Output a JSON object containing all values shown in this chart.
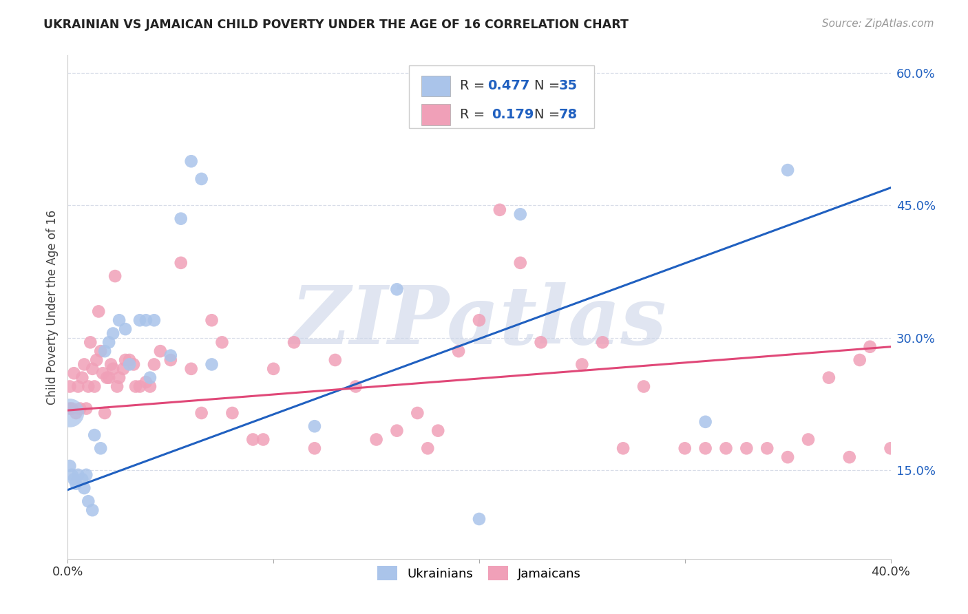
{
  "title": "UKRAINIAN VS JAMAICAN CHILD POVERTY UNDER THE AGE OF 16 CORRELATION CHART",
  "source": "Source: ZipAtlas.com",
  "ylabel": "Child Poverty Under the Age of 16",
  "xlim": [
    0.0,
    0.4
  ],
  "ylim": [
    0.05,
    0.62
  ],
  "yticks": [
    0.15,
    0.3,
    0.45,
    0.6
  ],
  "ytick_labels": [
    "15.0%",
    "30.0%",
    "45.0%",
    "60.0%"
  ],
  "xticks": [
    0.0,
    0.1,
    0.2,
    0.3,
    0.4
  ],
  "background_color": "#ffffff",
  "grid_color": "#d8dde8",
  "watermark": "ZIPatlas",
  "watermark_color": "#ccd5e8",
  "ukrainian_color": "#aac4ea",
  "ukrainian_line_color": "#2060c0",
  "jamaican_color": "#f0a0b8",
  "jamaican_line_color": "#e04878",
  "ukrainian_R": 0.477,
  "ukrainian_N": 35,
  "jamaican_R": 0.179,
  "jamaican_N": 78,
  "ukr_line_x0": 0.0,
  "ukr_line_y0": 0.128,
  "ukr_line_x1": 0.4,
  "ukr_line_y1": 0.47,
  "jam_line_x0": 0.0,
  "jam_line_y0": 0.218,
  "jam_line_x1": 0.4,
  "jam_line_y1": 0.29,
  "ukrainian_x": [
    0.001,
    0.002,
    0.003,
    0.004,
    0.005,
    0.007,
    0.008,
    0.009,
    0.01,
    0.012,
    0.013,
    0.016,
    0.018,
    0.02,
    0.022,
    0.025,
    0.028,
    0.03,
    0.035,
    0.038,
    0.04,
    0.042,
    0.05,
    0.055,
    0.06,
    0.065,
    0.07,
    0.12,
    0.16,
    0.2,
    0.22,
    0.31,
    0.35
  ],
  "ukrainian_y": [
    0.155,
    0.145,
    0.14,
    0.135,
    0.145,
    0.14,
    0.13,
    0.145,
    0.115,
    0.105,
    0.19,
    0.175,
    0.285,
    0.295,
    0.305,
    0.32,
    0.31,
    0.27,
    0.32,
    0.32,
    0.255,
    0.32,
    0.28,
    0.435,
    0.5,
    0.48,
    0.27,
    0.2,
    0.355,
    0.095,
    0.44,
    0.205,
    0.49
  ],
  "ukrainian_big_x": [
    0.001
  ],
  "ukrainian_big_y": [
    0.215
  ],
  "jamaican_x": [
    0.001,
    0.001,
    0.002,
    0.003,
    0.004,
    0.005,
    0.006,
    0.007,
    0.008,
    0.009,
    0.01,
    0.011,
    0.012,
    0.013,
    0.014,
    0.015,
    0.016,
    0.017,
    0.018,
    0.019,
    0.02,
    0.021,
    0.022,
    0.023,
    0.024,
    0.025,
    0.027,
    0.028,
    0.03,
    0.032,
    0.033,
    0.035,
    0.038,
    0.04,
    0.042,
    0.045,
    0.05,
    0.055,
    0.06,
    0.065,
    0.07,
    0.075,
    0.08,
    0.09,
    0.095,
    0.1,
    0.11,
    0.12,
    0.13,
    0.14,
    0.15,
    0.16,
    0.17,
    0.175,
    0.18,
    0.19,
    0.2,
    0.21,
    0.22,
    0.23,
    0.25,
    0.26,
    0.27,
    0.28,
    0.3,
    0.31,
    0.32,
    0.33,
    0.34,
    0.35,
    0.36,
    0.37,
    0.38,
    0.385,
    0.39,
    0.4
  ],
  "jamaican_y": [
    0.22,
    0.245,
    0.22,
    0.26,
    0.215,
    0.245,
    0.22,
    0.255,
    0.27,
    0.22,
    0.245,
    0.295,
    0.265,
    0.245,
    0.275,
    0.33,
    0.285,
    0.26,
    0.215,
    0.255,
    0.255,
    0.27,
    0.265,
    0.37,
    0.245,
    0.255,
    0.265,
    0.275,
    0.275,
    0.27,
    0.245,
    0.245,
    0.25,
    0.245,
    0.27,
    0.285,
    0.275,
    0.385,
    0.265,
    0.215,
    0.32,
    0.295,
    0.215,
    0.185,
    0.185,
    0.265,
    0.295,
    0.175,
    0.275,
    0.245,
    0.185,
    0.195,
    0.215,
    0.175,
    0.195,
    0.285,
    0.32,
    0.445,
    0.385,
    0.295,
    0.27,
    0.295,
    0.175,
    0.245,
    0.175,
    0.175,
    0.175,
    0.175,
    0.175,
    0.165,
    0.185,
    0.255,
    0.165,
    0.275,
    0.29,
    0.175
  ]
}
